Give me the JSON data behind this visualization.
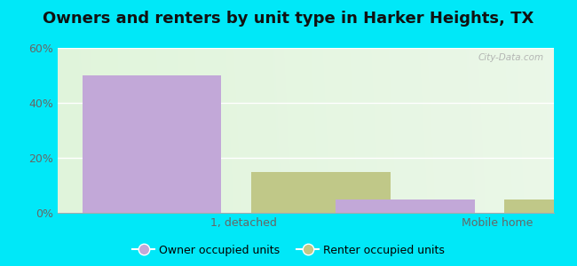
{
  "title": "Owners and renters by unit type in Harker Heights, TX",
  "categories": [
    "1, detached",
    "Mobile home"
  ],
  "owner_values": [
    50,
    5
  ],
  "renter_values": [
    15,
    5
  ],
  "owner_color": "#c2a8d8",
  "renter_color": "#c0c888",
  "ylim": [
    0,
    60
  ],
  "yticks": [
    0,
    20,
    40,
    60
  ],
  "ytick_labels": [
    "0%",
    "20%",
    "40%",
    "60%"
  ],
  "background_outer": "#00e8f8",
  "watermark": "City-Data.com",
  "legend_labels": [
    "Owner occupied units",
    "Renter occupied units"
  ],
  "bar_width": 0.28,
  "group_positions": [
    0.25,
    0.72
  ],
  "title_fontsize": 13,
  "tick_fontsize": 9,
  "legend_fontsize": 9,
  "grid_color": "#d0e8c0",
  "plot_bg_colors": [
    "#e8f5e0",
    "#f5fbf0"
  ]
}
